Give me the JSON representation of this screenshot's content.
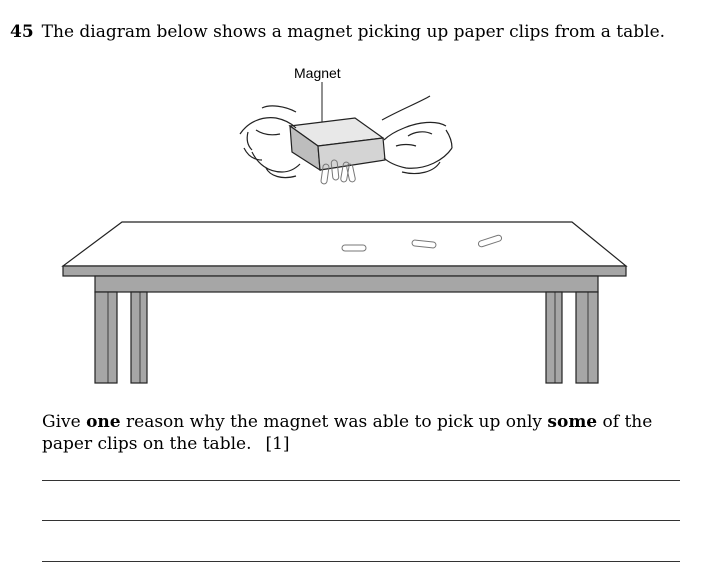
{
  "question": {
    "number": "45",
    "text": "The diagram below shows a magnet picking up paper clips from a table."
  },
  "diagram": {
    "label_magnet": "Magnet",
    "colors": {
      "table_fill": "#a6a6a6",
      "magnet_fill": "#d4d4d4",
      "outline": "#222222"
    }
  },
  "prompt": {
    "part1": "Give ",
    "bold1": "one",
    "part2": " reason why the magnet was able to pick up only ",
    "bold2": "some",
    "part3": " of the paper clips on the table.",
    "marks": "[1]"
  },
  "answer_lines": 3
}
